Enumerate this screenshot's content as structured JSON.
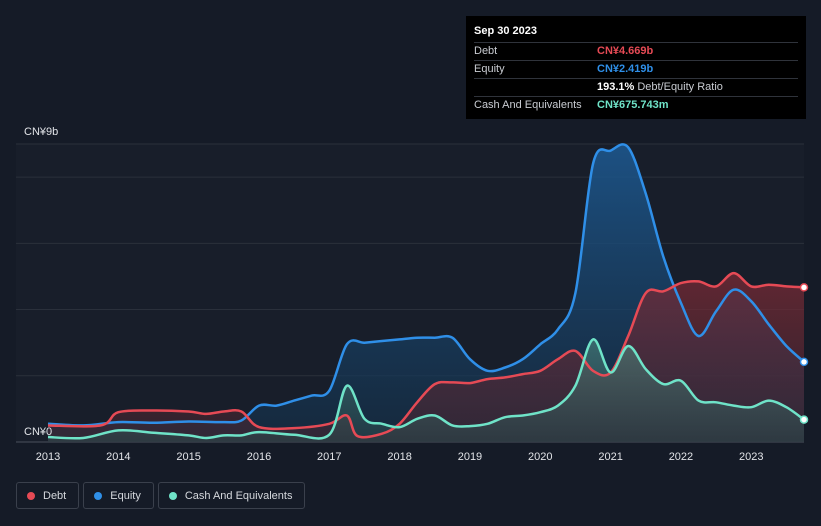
{
  "tooltip": {
    "date": "Sep 30 2023",
    "rows": [
      {
        "label": "Debt",
        "value": "CN¥4.669b",
        "color": "#e64a55"
      },
      {
        "label": "Equity",
        "value": "CN¥2.419b",
        "color": "#2f8fe8"
      },
      {
        "label": "",
        "value": "193.1%",
        "suffix": "Debt/Equity Ratio",
        "color": "#ffffff"
      },
      {
        "label": "Cash And Equivalents",
        "value": "CN¥675.743m",
        "color": "#6fe3c8"
      }
    ]
  },
  "legend": [
    {
      "label": "Debt",
      "color": "#e64a55"
    },
    {
      "label": "Equity",
      "color": "#2f8fe8"
    },
    {
      "label": "Cash And Equivalents",
      "color": "#6fe3c8"
    }
  ],
  "chart_data": {
    "type": "area",
    "y_top_label": "CN¥9b",
    "y_bottom_label": "CN¥0",
    "ylim": [
      0,
      9
    ],
    "xlim": [
      2013.0,
      2023.75
    ],
    "x_ticks": [
      "2013",
      "2014",
      "2015",
      "2016",
      "2017",
      "2018",
      "2019",
      "2020",
      "2021",
      "2022",
      "2023"
    ],
    "series": [
      {
        "name": "Debt",
        "color": "#e64a55",
        "points": [
          [
            2013.0,
            0.5
          ],
          [
            2013.75,
            0.5
          ],
          [
            2014.0,
            0.9
          ],
          [
            2014.5,
            0.95
          ],
          [
            2015.0,
            0.92
          ],
          [
            2015.25,
            0.85
          ],
          [
            2015.5,
            0.92
          ],
          [
            2015.75,
            0.92
          ],
          [
            2016.0,
            0.45
          ],
          [
            2016.5,
            0.42
          ],
          [
            2017.0,
            0.55
          ],
          [
            2017.25,
            0.8
          ],
          [
            2017.4,
            0.18
          ],
          [
            2017.75,
            0.25
          ],
          [
            2018.0,
            0.55
          ],
          [
            2018.25,
            1.2
          ],
          [
            2018.5,
            1.75
          ],
          [
            2018.75,
            1.8
          ],
          [
            2019.0,
            1.78
          ],
          [
            2019.25,
            1.9
          ],
          [
            2019.5,
            1.95
          ],
          [
            2019.75,
            2.05
          ],
          [
            2020.0,
            2.15
          ],
          [
            2020.25,
            2.5
          ],
          [
            2020.5,
            2.75
          ],
          [
            2020.75,
            2.15
          ],
          [
            2021.0,
            2.1
          ],
          [
            2021.25,
            3.2
          ],
          [
            2021.5,
            4.5
          ],
          [
            2021.75,
            4.55
          ],
          [
            2022.0,
            4.8
          ],
          [
            2022.25,
            4.85
          ],
          [
            2022.5,
            4.7
          ],
          [
            2022.75,
            5.1
          ],
          [
            2023.0,
            4.7
          ],
          [
            2023.25,
            4.75
          ],
          [
            2023.5,
            4.7
          ],
          [
            2023.75,
            4.669
          ]
        ]
      },
      {
        "name": "Equity",
        "color": "#2f8fe8",
        "points": [
          [
            2013.0,
            0.55
          ],
          [
            2013.5,
            0.5
          ],
          [
            2014.0,
            0.6
          ],
          [
            2014.5,
            0.58
          ],
          [
            2015.0,
            0.62
          ],
          [
            2015.5,
            0.6
          ],
          [
            2015.75,
            0.65
          ],
          [
            2016.0,
            1.1
          ],
          [
            2016.25,
            1.1
          ],
          [
            2016.5,
            1.25
          ],
          [
            2016.75,
            1.4
          ],
          [
            2017.0,
            1.55
          ],
          [
            2017.25,
            2.95
          ],
          [
            2017.5,
            3.0
          ],
          [
            2017.75,
            3.05
          ],
          [
            2018.0,
            3.1
          ],
          [
            2018.25,
            3.15
          ],
          [
            2018.5,
            3.15
          ],
          [
            2018.75,
            3.15
          ],
          [
            2019.0,
            2.5
          ],
          [
            2019.25,
            2.15
          ],
          [
            2019.5,
            2.25
          ],
          [
            2019.75,
            2.5
          ],
          [
            2020.0,
            2.95
          ],
          [
            2020.25,
            3.4
          ],
          [
            2020.5,
            4.5
          ],
          [
            2020.75,
            8.4
          ],
          [
            2021.0,
            8.8
          ],
          [
            2021.25,
            8.9
          ],
          [
            2021.5,
            7.5
          ],
          [
            2021.75,
            5.6
          ],
          [
            2022.0,
            4.2
          ],
          [
            2022.25,
            3.2
          ],
          [
            2022.5,
            3.95
          ],
          [
            2022.75,
            4.6
          ],
          [
            2023.0,
            4.25
          ],
          [
            2023.25,
            3.55
          ],
          [
            2023.5,
            2.9
          ],
          [
            2023.75,
            2.419
          ]
        ]
      },
      {
        "name": "Cash And Equivalents",
        "color": "#6fe3c8",
        "points": [
          [
            2013.0,
            0.15
          ],
          [
            2013.5,
            0.12
          ],
          [
            2014.0,
            0.35
          ],
          [
            2014.5,
            0.28
          ],
          [
            2015.0,
            0.2
          ],
          [
            2015.25,
            0.12
          ],
          [
            2015.5,
            0.2
          ],
          [
            2015.75,
            0.2
          ],
          [
            2016.0,
            0.3
          ],
          [
            2016.5,
            0.22
          ],
          [
            2017.0,
            0.22
          ],
          [
            2017.25,
            1.7
          ],
          [
            2017.5,
            0.7
          ],
          [
            2017.75,
            0.55
          ],
          [
            2018.0,
            0.45
          ],
          [
            2018.25,
            0.7
          ],
          [
            2018.5,
            0.8
          ],
          [
            2018.75,
            0.5
          ],
          [
            2019.0,
            0.48
          ],
          [
            2019.25,
            0.55
          ],
          [
            2019.5,
            0.75
          ],
          [
            2019.75,
            0.8
          ],
          [
            2020.0,
            0.9
          ],
          [
            2020.25,
            1.1
          ],
          [
            2020.5,
            1.7
          ],
          [
            2020.75,
            3.1
          ],
          [
            2021.0,
            2.1
          ],
          [
            2021.25,
            2.9
          ],
          [
            2021.5,
            2.2
          ],
          [
            2021.75,
            1.75
          ],
          [
            2022.0,
            1.85
          ],
          [
            2022.25,
            1.25
          ],
          [
            2022.5,
            1.2
          ],
          [
            2022.75,
            1.1
          ],
          [
            2023.0,
            1.05
          ],
          [
            2023.25,
            1.25
          ],
          [
            2023.5,
            1.05
          ],
          [
            2023.75,
            0.676
          ]
        ]
      }
    ]
  }
}
